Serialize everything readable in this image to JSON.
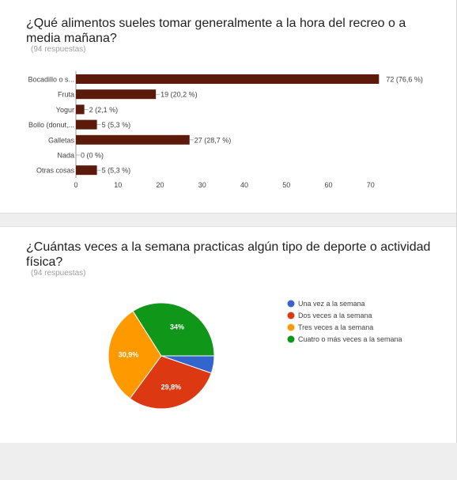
{
  "q1": {
    "title": "¿Qué alimentos sueles tomar generalmente a la hora del recreo o a media mañana?",
    "responses": "(94 respuestas)"
  },
  "q2": {
    "title": "¿Cuántas veces a la semana practicas algún tipo de deporte o actividad física?",
    "responses": "(94 respuestas)"
  },
  "chart_data": [
    {
      "type": "bar",
      "orientation": "horizontal",
      "categories": [
        "Bocadillo o s...",
        "Fruta",
        "Yogur",
        "Bollo (donut,...",
        "Galletas",
        "Nada",
        "Otras cosas"
      ],
      "values": [
        72,
        19,
        2,
        5,
        27,
        0,
        5
      ],
      "labels": [
        "72 (76,6 %)",
        "19 (20,2 %)",
        "2 (2,1 %)",
        "5 (5,3 %)",
        "27 (28,7 %)",
        "0 (0 %)",
        "5 (5,3 %)"
      ],
      "xlim": [
        0,
        74
      ],
      "xticks": [
        0,
        10,
        20,
        30,
        40,
        50,
        60,
        70
      ],
      "color": "#5b1a0a",
      "grid": false
    },
    {
      "type": "pie",
      "categories": [
        "Una vez a la semana",
        "Dos veces a la semana",
        "Tres veces a la semana",
        "Cuatro o más veces a la semana"
      ],
      "values": [
        5.3,
        29.8,
        30.9,
        34
      ],
      "slice_labels": [
        "",
        "29,8%",
        "30,9%",
        "34%"
      ],
      "colors": [
        "#3366cc",
        "#dc3912",
        "#ff9900",
        "#109618"
      ],
      "legend": "right"
    }
  ]
}
